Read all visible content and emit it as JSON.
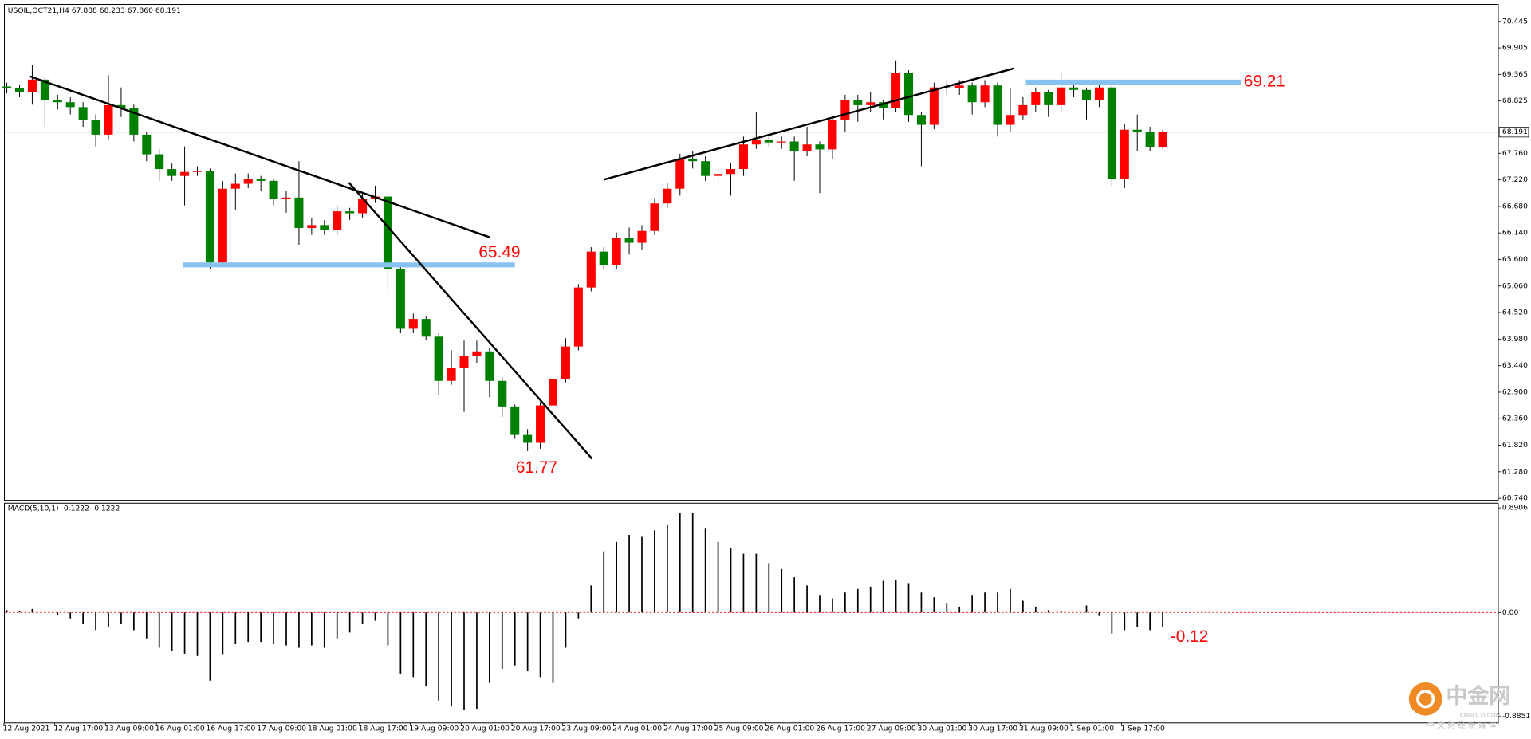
{
  "chart_data": {
    "type": "candlestick",
    "title": "USOIL,OCT21,H4  67.888 68.233 67.860 68.191",
    "categories": [
      "12 Aug 2021",
      null,
      null,
      null,
      "12 Aug 17:00",
      null,
      null,
      null,
      "13 Aug 09:00",
      null,
      null,
      null,
      "16 Aug 01:00",
      null,
      null,
      null,
      "16 Aug 17:00",
      null,
      null,
      null,
      "17 Aug 09:00",
      null,
      null,
      null,
      "18 Aug 01:00",
      null,
      null,
      null,
      "18 Aug 17:00",
      null,
      null,
      null,
      "19 Aug 09:00",
      null,
      null,
      null,
      "20 Aug 01:00",
      null,
      null,
      null,
      "20 Aug 17:00",
      null,
      null,
      null,
      "23 Aug 09:00",
      null,
      null,
      null,
      "24 Aug 01:00",
      null,
      null,
      null,
      "24 Aug 17:00",
      null,
      null,
      null,
      "25 Aug 09:00",
      null,
      null,
      null,
      "26 Aug 01:00",
      null,
      null,
      null,
      "26 Aug 17:00",
      null,
      null,
      null,
      "27 Aug 09:00",
      null,
      null,
      null,
      "30 Aug 01:00",
      null,
      null,
      null,
      "30 Aug 17:00",
      null,
      null,
      null,
      "31 Aug 09:00",
      null,
      null,
      null,
      "1 Sep 01:00",
      null,
      null,
      null,
      "1 Sep 17:00",
      null,
      null,
      null
    ],
    "open": [
      69.12,
      69.08,
      69.0,
      69.26,
      68.84,
      68.8,
      68.7,
      68.44,
      68.14,
      68.74,
      68.68,
      68.14,
      67.74,
      67.44,
      67.3,
      67.38,
      67.4,
      65.54,
      67.04,
      67.14,
      67.24,
      67.2,
      66.84,
      66.86,
      66.24,
      66.3,
      66.2,
      66.58,
      66.54,
      66.84,
      66.88,
      65.4,
      64.19,
      64.39,
      64.03,
      63.13,
      63.39,
      63.63,
      63.73,
      63.13,
      62.61,
      62.03,
      61.87,
      62.63,
      63.17,
      63.83,
      65.03,
      65.76,
      65.48,
      66.04,
      65.94,
      66.18,
      66.74,
      67.04,
      67.64,
      67.6,
      67.3,
      67.34,
      67.44,
      67.94,
      68.04,
      67.98,
      68.0,
      67.8,
      67.94,
      67.84,
      68.44,
      68.84,
      68.74,
      68.8,
      68.68,
      69.4,
      68.54,
      68.34,
      69.1,
      69.08,
      69.14,
      68.8,
      69.14,
      68.34,
      68.54,
      68.74,
      69.0,
      68.74,
      69.1,
      69.05,
      68.85,
      69.1,
      67.24,
      68.24,
      68.19,
      67.888
    ],
    "high": [
      69.2,
      69.15,
      69.55,
      69.3,
      68.95,
      68.9,
      68.8,
      68.55,
      69.35,
      69.1,
      68.75,
      68.2,
      67.85,
      67.55,
      67.9,
      67.5,
      67.45,
      67.2,
      67.35,
      67.35,
      67.3,
      67.25,
      67.0,
      67.6,
      66.45,
      66.4,
      66.7,
      66.65,
      66.95,
      67.1,
      67.0,
      65.45,
      64.5,
      64.45,
      64.1,
      63.75,
      63.95,
      63.95,
      63.8,
      63.2,
      62.65,
      62.15,
      62.7,
      63.25,
      64.0,
      65.1,
      65.85,
      65.85,
      66.15,
      66.25,
      66.3,
      66.85,
      67.15,
      67.75,
      67.8,
      67.7,
      67.45,
      67.55,
      68.1,
      68.6,
      68.1,
      68.1,
      68.1,
      68.3,
      68.0,
      68.5,
      68.95,
      68.95,
      69.0,
      68.85,
      69.65,
      69.45,
      68.6,
      69.2,
      69.25,
      69.25,
      69.2,
      69.25,
      69.2,
      69.1,
      68.9,
      69.1,
      69.05,
      69.4,
      69.2,
      69.1,
      69.25,
      69.15,
      68.35,
      68.55,
      68.3,
      68.233
    ],
    "low": [
      68.98,
      68.9,
      68.75,
      68.3,
      68.65,
      68.55,
      68.3,
      67.9,
      68.05,
      68.5,
      68.0,
      67.6,
      67.2,
      67.2,
      66.7,
      67.3,
      65.4,
      65.45,
      66.6,
      67.05,
      67.0,
      66.7,
      66.55,
      65.9,
      66.1,
      66.1,
      66.1,
      66.4,
      66.45,
      66.75,
      64.9,
      64.1,
      64.1,
      63.95,
      62.85,
      63.05,
      62.5,
      63.5,
      62.8,
      62.4,
      61.95,
      61.7,
      61.75,
      62.55,
      63.1,
      63.75,
      64.95,
      65.4,
      65.4,
      65.7,
      65.8,
      66.1,
      66.65,
      66.9,
      67.45,
      67.2,
      67.15,
      66.9,
      67.3,
      67.85,
      67.9,
      67.85,
      67.2,
      67.7,
      66.95,
      67.65,
      68.2,
      68.4,
      68.6,
      68.45,
      68.6,
      68.4,
      67.5,
      68.25,
      68.95,
      68.95,
      68.55,
      68.7,
      68.1,
      68.2,
      68.45,
      68.6,
      68.5,
      68.6,
      68.9,
      68.45,
      68.7,
      67.1,
      67.05,
      67.8,
      67.8,
      67.86
    ],
    "close": [
      69.08,
      69.0,
      69.26,
      68.84,
      68.8,
      68.7,
      68.44,
      68.14,
      68.74,
      68.68,
      68.14,
      67.74,
      67.44,
      67.3,
      67.38,
      67.4,
      65.54,
      67.04,
      67.14,
      67.24,
      67.2,
      66.84,
      66.86,
      66.24,
      66.3,
      66.2,
      66.58,
      66.54,
      66.84,
      66.88,
      65.4,
      64.19,
      64.39,
      64.03,
      63.13,
      63.39,
      63.63,
      63.73,
      63.13,
      62.61,
      62.03,
      61.87,
      62.63,
      63.17,
      63.83,
      65.03,
      65.76,
      65.48,
      66.04,
      65.94,
      66.18,
      66.74,
      67.04,
      67.64,
      67.6,
      67.3,
      67.34,
      67.44,
      67.94,
      68.04,
      67.98,
      68.0,
      67.8,
      67.94,
      67.84,
      68.44,
      68.84,
      68.74,
      68.8,
      68.68,
      69.4,
      68.54,
      68.34,
      69.1,
      69.08,
      69.14,
      68.8,
      69.14,
      68.34,
      68.54,
      68.74,
      69.0,
      68.74,
      69.1,
      69.05,
      68.85,
      69.1,
      67.24,
      68.24,
      68.19,
      67.888,
      68.191
    ],
    "up_color": "#ff0000",
    "down_color": "#008000",
    "ylim": [
      60.7,
      70.79
    ],
    "yticks": [
      70.445,
      69.905,
      69.365,
      68.825,
      {
        "value": 67.76,
        "label": "67.760"
      },
      {
        "value": 67.22,
        "label": "67.220"
      },
      {
        "value": 66.68,
        "label": "66.680"
      },
      {
        "value": 66.14,
        "label": "66.140"
      },
      {
        "value": 65.6,
        "label": "65.600"
      },
      {
        "value": 65.06,
        "label": "65.060"
      },
      {
        "value": 64.52,
        "label": "64.520"
      },
      {
        "value": 63.98,
        "label": "63.980"
      },
      {
        "value": 63.44,
        "label": "63.440"
      },
      {
        "value": 62.9,
        "label": "62.900"
      },
      {
        "value": 62.36,
        "label": "62.360"
      },
      {
        "value": 61.82,
        "label": "61.820"
      },
      {
        "value": 61.28,
        "label": "61.280"
      },
      {
        "value": 60.74,
        "label": "60.740"
      }
    ],
    "annotations": [
      65.49,
      61.77,
      69.21
    ],
    "level_color": "#87c3f0",
    "indicator": {
      "type": "histogram",
      "title": "MACD(5,10,1) -0.1222 -0.1222",
      "values": [
        0.02,
        0.01,
        0.03,
        0.0,
        -0.02,
        -0.05,
        -0.1,
        -0.15,
        -0.12,
        -0.1,
        -0.15,
        -0.22,
        -0.3,
        -0.33,
        -0.35,
        -0.37,
        -0.58,
        -0.36,
        -0.27,
        -0.25,
        -0.25,
        -0.27,
        -0.28,
        -0.3,
        -0.28,
        -0.3,
        -0.22,
        -0.17,
        -0.1,
        -0.07,
        -0.28,
        -0.52,
        -0.55,
        -0.63,
        -0.75,
        -0.8,
        -0.83,
        -0.82,
        -0.6,
        -0.48,
        -0.45,
        -0.5,
        -0.55,
        -0.6,
        -0.3,
        -0.05,
        0.23,
        0.52,
        0.6,
        0.66,
        0.65,
        0.7,
        0.75,
        0.85,
        0.85,
        0.72,
        0.6,
        0.55,
        0.5,
        0.5,
        0.42,
        0.37,
        0.3,
        0.23,
        0.15,
        0.12,
        0.17,
        0.2,
        0.22,
        0.27,
        0.28,
        0.25,
        0.17,
        0.13,
        0.08,
        0.05,
        0.15,
        0.17,
        0.17,
        0.2,
        0.1,
        0.05,
        0.02,
        0.01,
        0.0,
        0.06,
        -0.03,
        -0.18,
        -0.15,
        -0.12,
        -0.15,
        -0.1222
      ],
      "color": "#000000",
      "ylim": [
        -0.94,
        0.93
      ],
      "yticks": [
        0.8906,
        {
          "value": 0,
          "label": "0.00"
        },
        -0.8851
      ],
      "annotation": -0.12,
      "zero_line_color": "#ff0000"
    }
  },
  "watermark": {
    "name": "中金网",
    "site": "CNGOLD.COM",
    "tagline": "中 文 财 经 新 媒 体"
  }
}
